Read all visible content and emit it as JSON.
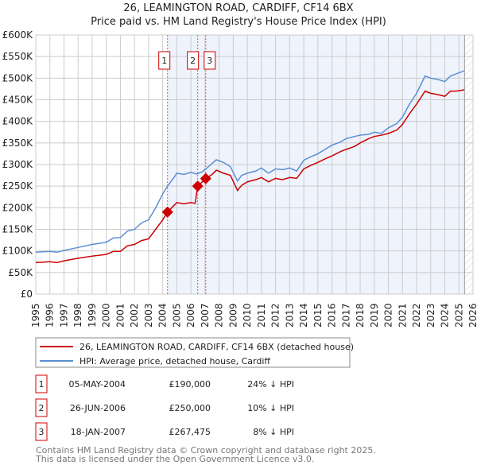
{
  "chart_data": {
    "type": "line",
    "title": "26, LEAMINGTON ROAD, CARDIFF, CF14 6BX",
    "subtitle": "Price paid vs. HM Land Registry's House Price Index (HPI)",
    "xlim": [
      1995,
      2026
    ],
    "ylim": [
      0,
      600000
    ],
    "yticks": [
      {
        "v": 0,
        "label": "£0"
      },
      {
        "v": 50000,
        "label": "£50K"
      },
      {
        "v": 100000,
        "label": "£100K"
      },
      {
        "v": 150000,
        "label": "£150K"
      },
      {
        "v": 200000,
        "label": "£200K"
      },
      {
        "v": 250000,
        "label": "£250K"
      },
      {
        "v": 300000,
        "label": "£300K"
      },
      {
        "v": 350000,
        "label": "£350K"
      },
      {
        "v": 400000,
        "label": "£400K"
      },
      {
        "v": 450000,
        "label": "£450K"
      },
      {
        "v": 500000,
        "label": "£500K"
      },
      {
        "v": 550000,
        "label": "£550K"
      },
      {
        "v": 600000,
        "label": "£600K"
      }
    ],
    "xticks": [
      "1995",
      "1996",
      "1997",
      "1998",
      "1999",
      "2000",
      "2001",
      "2002",
      "2003",
      "2004",
      "2005",
      "2006",
      "2007",
      "2008",
      "2009",
      "2010",
      "2011",
      "2012",
      "2013",
      "2014",
      "2015",
      "2016",
      "2017",
      "2018",
      "2019",
      "2020",
      "2021",
      "2022",
      "2023",
      "2024",
      "2025",
      "2026"
    ],
    "grid": true,
    "shaded_from": 2004.34,
    "hatched_from": 2025.4,
    "colors": {
      "property": "#cc0000",
      "hpi": "#5b8fd4",
      "shade": "#eef3fc",
      "vline": "#e05555"
    },
    "series": [
      {
        "name": "26, LEAMINGTON ROAD, CARDIFF, CF14 6BX (detached house)",
        "color": "#cc0000",
        "x": [
          1995,
          1996,
          1996.5,
          1997,
          1998,
          1999,
          2000,
          2000.5,
          2001,
          2001.5,
          2002,
          2002.5,
          2003,
          2003.5,
          2004,
          2004.34,
          2005,
          2005.5,
          2006,
          2006.3,
          2006.48,
          2007.05,
          2007.5,
          2007.8,
          2008.3,
          2008.8,
          2009.3,
          2009.6,
          2010,
          2010.6,
          2011,
          2011.5,
          2012,
          2012.5,
          2013,
          2013.5,
          2014,
          2014.5,
          2015,
          2015.5,
          2016,
          2016.6,
          2017,
          2017.6,
          2018,
          2018.6,
          2019,
          2019.5,
          2020,
          2020.6,
          2021,
          2021.5,
          2022,
          2022.6,
          2023,
          2023.5,
          2024,
          2024.4,
          2024.8,
          2025.38
        ],
        "y": [
          73000,
          75000,
          73000,
          77000,
          83000,
          88000,
          92000,
          99000,
          99000,
          112000,
          115000,
          124000,
          128000,
          150000,
          172000,
          190000,
          212000,
          209000,
          212000,
          210000,
          250000,
          267475,
          277000,
          287000,
          280000,
          275000,
          240000,
          252000,
          260000,
          265000,
          270000,
          260000,
          268000,
          265000,
          270000,
          268000,
          290000,
          298000,
          305000,
          313000,
          320000,
          330000,
          335000,
          342000,
          350000,
          360000,
          365000,
          368000,
          372000,
          380000,
          393000,
          418000,
          440000,
          470000,
          465000,
          462000,
          458000,
          470000,
          470000,
          473000
        ]
      },
      {
        "name": "HPI: Average price, detached house, Cardiff",
        "color": "#5b8fd4",
        "x": [
          1995,
          1996,
          1996.5,
          1997,
          1998,
          1999,
          2000,
          2000.5,
          2001,
          2001.5,
          2002,
          2002.5,
          2003,
          2003.5,
          2004,
          2004.34,
          2004.8,
          2005,
          2005.5,
          2006,
          2006.4,
          2006.8,
          2007.2,
          2007.8,
          2008.3,
          2008.8,
          2009.3,
          2009.6,
          2010,
          2010.6,
          2011,
          2011.5,
          2012,
          2012.5,
          2013,
          2013.5,
          2014,
          2014.5,
          2015,
          2015.5,
          2016,
          2016.6,
          2017,
          2017.6,
          2018,
          2018.6,
          2019,
          2019.5,
          2020,
          2020.6,
          2021,
          2021.5,
          2022,
          2022.6,
          2023,
          2023.5,
          2024,
          2024.4,
          2024.8,
          2025.38
        ],
        "y": [
          97000,
          99000,
          97000,
          101000,
          108000,
          115000,
          120000,
          130000,
          131000,
          146000,
          150000,
          165000,
          172000,
          200000,
          232000,
          250000,
          270000,
          280000,
          277000,
          282000,
          278000,
          283000,
          294000,
          311000,
          305000,
          295000,
          262000,
          275000,
          280000,
          285000,
          292000,
          280000,
          290000,
          288000,
          292000,
          285000,
          310000,
          318000,
          325000,
          335000,
          345000,
          352000,
          360000,
          365000,
          368000,
          370000,
          375000,
          372000,
          385000,
          395000,
          410000,
          440000,
          465000,
          505000,
          500000,
          497000,
          492000,
          505000,
          510000,
          517000
        ]
      }
    ],
    "sales": [
      {
        "n": "1",
        "x": 2004.34,
        "price": 190000,
        "date": "05-MAY-2004",
        "price_label": "£190,000",
        "hpi": "24% ↓ HPI"
      },
      {
        "n": "2",
        "x": 2006.48,
        "price": 250000,
        "date": "26-JUN-2006",
        "price_label": "£250,000",
        "hpi": "10% ↓ HPI"
      },
      {
        "n": "3",
        "x": 2007.05,
        "price": 267475,
        "date": "18-JAN-2007",
        "price_label": "£267,475",
        "hpi": "8% ↓ HPI"
      }
    ]
  },
  "footer": {
    "line1": "Contains HM Land Registry data © Crown copyright and database right 2025.",
    "line2": "This data is licensed under the Open Government Licence v3.0."
  }
}
